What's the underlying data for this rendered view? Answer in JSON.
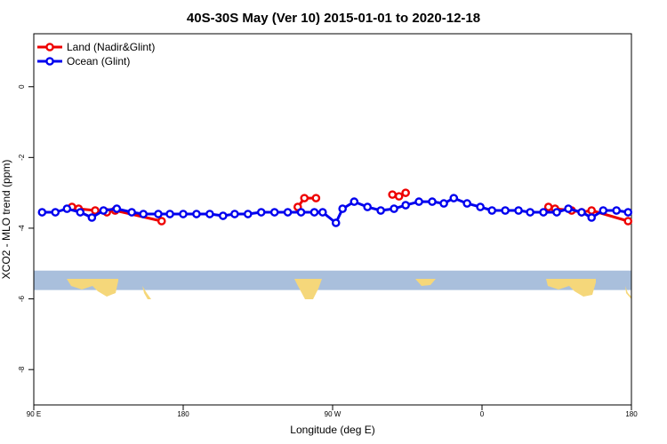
{
  "chart_data": {
    "type": "line",
    "title": "40S-30S May (Ver 10)   2015-01-01 to 2020-12-18",
    "xlabel": "Longitude (deg E)",
    "ylabel": "XCO2 - MLO trend (ppm)",
    "xlim": [
      90,
      450
    ],
    "ylim": [
      -9.0,
      1.5
    ],
    "x_ticks": [
      {
        "value": 90,
        "label": "90 E"
      },
      {
        "value": 180,
        "label": "180"
      },
      {
        "value": 270,
        "label": "90 W"
      },
      {
        "value": 360,
        "label": "0"
      },
      {
        "value": 450,
        "label": "180"
      }
    ],
    "y_ticks": [
      {
        "value": 0,
        "label": "0"
      },
      {
        "value": -2,
        "label": "-2"
      },
      {
        "value": -4,
        "label": "-4"
      },
      {
        "value": -6,
        "label": "-6"
      },
      {
        "value": -8,
        "label": "-8"
      }
    ],
    "legend_position": "top-left",
    "map_band": {
      "y_top": -5.2,
      "y_bottom": -5.75,
      "ocean_color": "#a9bfdc",
      "land_color": "#f5d77a"
    },
    "series": [
      {
        "name": "Land (Nadir&Glint)",
        "color": "#ee0000",
        "segments": [
          [
            [
              113,
              -3.4
            ],
            [
              117,
              -3.45
            ],
            [
              127,
              -3.5
            ],
            [
              134,
              -3.55
            ],
            [
              139,
              -3.5
            ],
            [
              167,
              -3.8
            ]
          ],
          [
            [
              249,
              -3.4
            ],
            [
              253,
              -3.15
            ],
            [
              260,
              -3.15
            ]
          ],
          [
            [
              306,
              -3.05
            ],
            [
              310,
              -3.1
            ],
            [
              314,
              -3.0
            ]
          ],
          [
            [
              400,
              -3.4
            ],
            [
              404,
              -3.45
            ],
            [
              414,
              -3.5
            ],
            [
              420,
              -3.55
            ],
            [
              426,
              -3.5
            ],
            [
              448,
              -3.8
            ]
          ]
        ]
      },
      {
        "name": "Ocean (Glint)",
        "color": "#0000ee",
        "segments": [
          [
            [
              95,
              -3.55
            ],
            [
              103,
              -3.55
            ],
            [
              110,
              -3.45
            ],
            [
              118,
              -3.55
            ],
            [
              125,
              -3.7
            ],
            [
              132,
              -3.5
            ],
            [
              140,
              -3.45
            ],
            [
              149,
              -3.55
            ],
            [
              156,
              -3.6
            ],
            [
              165,
              -3.6
            ],
            [
              172,
              -3.6
            ],
            [
              180,
              -3.6
            ],
            [
              188,
              -3.6
            ],
            [
              196,
              -3.6
            ],
            [
              204,
              -3.65
            ],
            [
              211,
              -3.6
            ],
            [
              219,
              -3.6
            ],
            [
              227,
              -3.55
            ],
            [
              235,
              -3.55
            ],
            [
              243,
              -3.55
            ],
            [
              251,
              -3.55
            ],
            [
              259,
              -3.55
            ],
            [
              264,
              -3.55
            ],
            [
              272,
              -3.85
            ],
            [
              276,
              -3.45
            ],
            [
              283,
              -3.25
            ],
            [
              291,
              -3.4
            ],
            [
              299,
              -3.5
            ],
            [
              307,
              -3.45
            ],
            [
              314,
              -3.35
            ],
            [
              322,
              -3.25
            ],
            [
              330,
              -3.25
            ],
            [
              337,
              -3.3
            ],
            [
              343,
              -3.15
            ],
            [
              351,
              -3.3
            ],
            [
              359,
              -3.4
            ],
            [
              366,
              -3.5
            ],
            [
              374,
              -3.5
            ],
            [
              382,
              -3.5
            ],
            [
              389,
              -3.55
            ],
            [
              397,
              -3.55
            ],
            [
              405,
              -3.55
            ],
            [
              412,
              -3.45
            ],
            [
              420,
              -3.55
            ],
            [
              426,
              -3.7
            ],
            [
              433,
              -3.5
            ],
            [
              441,
              -3.5
            ],
            [
              448,
              -3.55
            ]
          ]
        ]
      }
    ]
  }
}
